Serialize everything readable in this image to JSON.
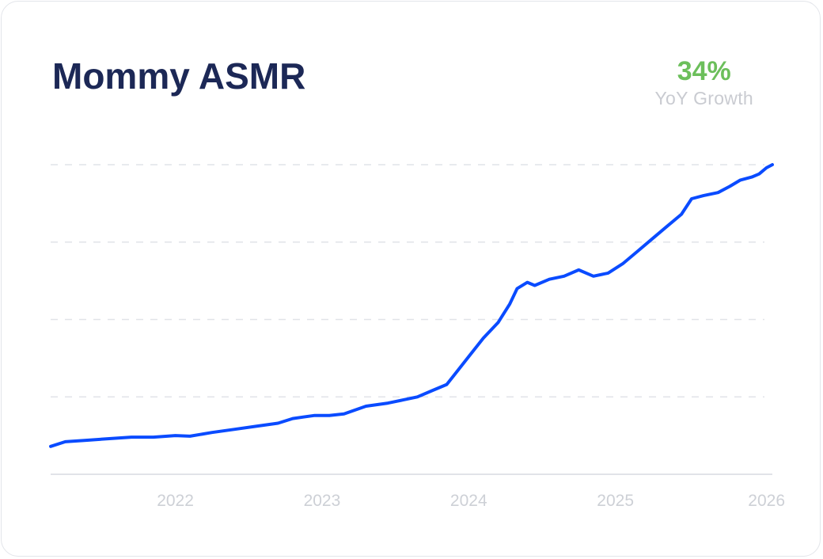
{
  "card": {
    "title": "Mommy ASMR",
    "growth_value": "34%",
    "growth_label": "YoY Growth"
  },
  "colors": {
    "title": "#1c2856",
    "growth": "#6cbf5b",
    "line": "#0a4bff",
    "grid": "#e1e3e8",
    "tick": "#cdd0d6"
  },
  "chart_data": {
    "type": "line",
    "title": "Mommy ASMR",
    "xlabel": "",
    "ylabel": "",
    "grid": true,
    "y_axis_labels": false,
    "ylim": [
      0,
      100
    ],
    "xlim": [
      2021.15,
      2026.07
    ],
    "x_ticks": [
      2022,
      2023,
      2024,
      2025,
      2026
    ],
    "x_tick_labels": [
      "2022",
      "2023",
      "2024",
      "2025",
      "2026"
    ],
    "series": [
      {
        "color": "#0a4bff",
        "points": [
          [
            2021.15,
            9
          ],
          [
            2021.25,
            10.5
          ],
          [
            2021.4,
            11
          ],
          [
            2021.55,
            11.5
          ],
          [
            2021.7,
            12
          ],
          [
            2021.85,
            12
          ],
          [
            2022.0,
            12.5
          ],
          [
            2022.1,
            12.3
          ],
          [
            2022.25,
            13.5
          ],
          [
            2022.4,
            14.5
          ],
          [
            2022.55,
            15.5
          ],
          [
            2022.7,
            16.5
          ],
          [
            2022.8,
            18
          ],
          [
            2022.95,
            19
          ],
          [
            2023.05,
            19
          ],
          [
            2023.15,
            19.5
          ],
          [
            2023.3,
            22
          ],
          [
            2023.45,
            23
          ],
          [
            2023.55,
            24
          ],
          [
            2023.65,
            25
          ],
          [
            2023.75,
            27
          ],
          [
            2023.85,
            29
          ],
          [
            2023.9,
            32
          ],
          [
            2024.0,
            38
          ],
          [
            2024.1,
            44
          ],
          [
            2024.2,
            49
          ],
          [
            2024.28,
            55
          ],
          [
            2024.33,
            60
          ],
          [
            2024.4,
            62
          ],
          [
            2024.45,
            61
          ],
          [
            2024.55,
            63
          ],
          [
            2024.65,
            64
          ],
          [
            2024.75,
            66
          ],
          [
            2024.85,
            64
          ],
          [
            2024.95,
            65
          ],
          [
            2025.05,
            68
          ],
          [
            2025.15,
            72
          ],
          [
            2025.25,
            76
          ],
          [
            2025.35,
            80
          ],
          [
            2025.45,
            84
          ],
          [
            2025.52,
            89
          ],
          [
            2025.6,
            90
          ],
          [
            2025.7,
            91
          ],
          [
            2025.78,
            93
          ],
          [
            2025.85,
            95
          ],
          [
            2025.93,
            96
          ],
          [
            2025.98,
            97
          ],
          [
            2026.03,
            99
          ],
          [
            2026.07,
            100
          ]
        ]
      }
    ]
  }
}
